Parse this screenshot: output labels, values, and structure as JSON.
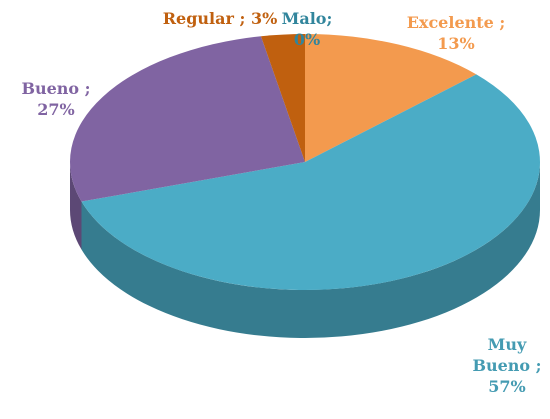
{
  "chart_data": {
    "type": "pie",
    "three_d": true,
    "categories": [
      "Excelente",
      "Muy Bueno",
      "Bueno",
      "Regular",
      "Malo"
    ],
    "values": [
      13,
      57,
      27,
      3,
      0
    ],
    "value_labels": [
      "Excelente ; 13%",
      "Muy Bueno ; 57%",
      "Bueno ; 27%",
      "Regular ; 3%",
      "Malo; 0%"
    ],
    "colors": [
      "#f39a4e",
      "#4bacc6",
      "#8064a2",
      "#c0600f",
      "#31859c"
    ]
  }
}
